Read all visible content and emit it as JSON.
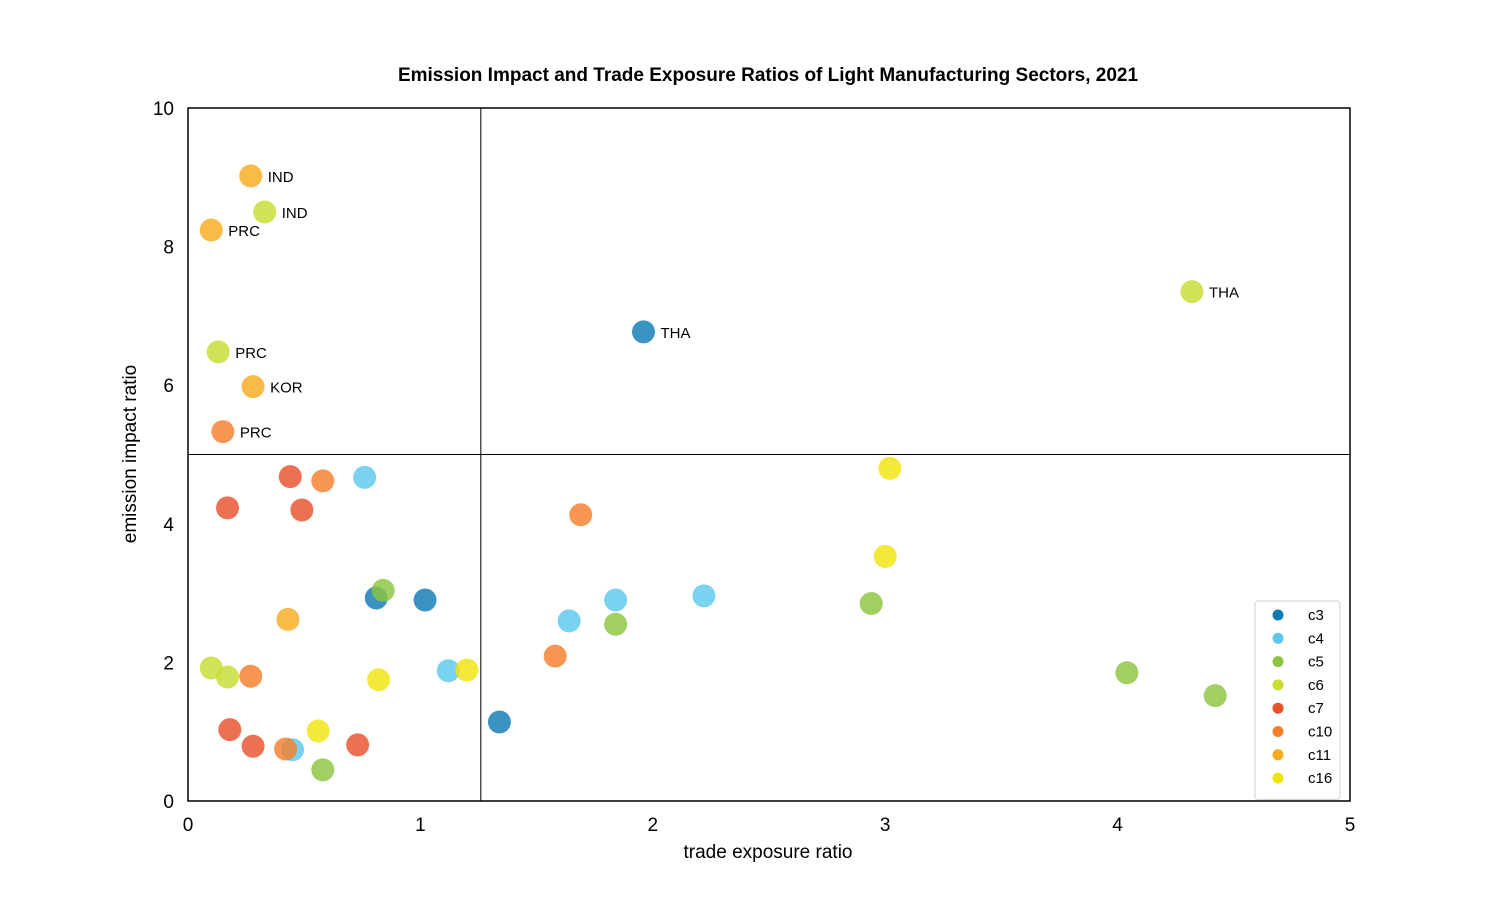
{
  "chart_data": {
    "type": "scatter",
    "title": "Emission Impact and Trade Exposure Ratios of Light Manufacturing Sectors, 2021",
    "xlabel": "trade exposure ratio",
    "ylabel": "emission impact ratio",
    "xlim": [
      0,
      5
    ],
    "ylim": [
      0,
      10
    ],
    "x_ticks": [
      0,
      1,
      2,
      3,
      4,
      5
    ],
    "y_ticks": [
      0,
      2,
      4,
      6,
      8,
      10
    ],
    "x_tick_labels": [
      "0",
      "1",
      "2",
      "3",
      "4",
      "5"
    ],
    "y_tick_labels": [
      "0",
      "2",
      "4",
      "6",
      "8",
      "10"
    ],
    "reference_lines": {
      "x": 1.26,
      "y": 5.0
    },
    "grid": false,
    "legend_position": "lower-right",
    "series": [
      {
        "name": "c3",
        "color": "#0f7bb5",
        "points": [
          {
            "x": 1.96,
            "y": 6.77,
            "label": "THA"
          },
          {
            "x": 0.81,
            "y": 2.93
          },
          {
            "x": 1.02,
            "y": 2.9
          },
          {
            "x": 1.34,
            "y": 1.14
          }
        ]
      },
      {
        "name": "c4",
        "color": "#5bc8ec",
        "points": [
          {
            "x": 0.76,
            "y": 4.67
          },
          {
            "x": 1.64,
            "y": 2.6
          },
          {
            "x": 1.84,
            "y": 2.9
          },
          {
            "x": 2.22,
            "y": 2.96
          },
          {
            "x": 1.12,
            "y": 1.88
          },
          {
            "x": 0.45,
            "y": 0.74
          }
        ]
      },
      {
        "name": "c5",
        "color": "#8cc43f",
        "points": [
          {
            "x": 0.84,
            "y": 3.04
          },
          {
            "x": 1.84,
            "y": 2.55
          },
          {
            "x": 2.94,
            "y": 2.85
          },
          {
            "x": 4.04,
            "y": 1.85
          },
          {
            "x": 4.42,
            "y": 1.52
          },
          {
            "x": 0.58,
            "y": 0.45
          }
        ]
      },
      {
        "name": "c6",
        "color": "#c8dc32",
        "points": [
          {
            "x": 0.33,
            "y": 8.5,
            "label": "IND"
          },
          {
            "x": 0.13,
            "y": 6.48,
            "label": "PRC"
          },
          {
            "x": 4.32,
            "y": 7.35,
            "label": "THA"
          },
          {
            "x": 0.1,
            "y": 1.92
          },
          {
            "x": 0.17,
            "y": 1.79
          }
        ]
      },
      {
        "name": "c7",
        "color": "#e8512b",
        "points": [
          {
            "x": 0.44,
            "y": 4.68
          },
          {
            "x": 0.17,
            "y": 4.23
          },
          {
            "x": 0.49,
            "y": 4.2
          },
          {
            "x": 0.18,
            "y": 1.03
          },
          {
            "x": 0.28,
            "y": 0.79
          },
          {
            "x": 0.73,
            "y": 0.81
          }
        ]
      },
      {
        "name": "c10",
        "color": "#f47f2c",
        "points": [
          {
            "x": 0.15,
            "y": 5.33,
            "label": "PRC"
          },
          {
            "x": 0.58,
            "y": 4.62
          },
          {
            "x": 1.69,
            "y": 4.13
          },
          {
            "x": 1.58,
            "y": 2.09
          },
          {
            "x": 0.27,
            "y": 1.8
          },
          {
            "x": 0.42,
            "y": 0.75
          }
        ]
      },
      {
        "name": "c11",
        "color": "#f9ab1e",
        "points": [
          {
            "x": 0.27,
            "y": 9.02,
            "label": "IND"
          },
          {
            "x": 0.1,
            "y": 8.24,
            "label": "PRC"
          },
          {
            "x": 0.28,
            "y": 5.98,
            "label": "KOR"
          },
          {
            "x": 0.43,
            "y": 2.62
          }
        ]
      },
      {
        "name": "c16",
        "color": "#f2e30f",
        "points": [
          {
            "x": 3.02,
            "y": 4.8
          },
          {
            "x": 3.0,
            "y": 3.53
          },
          {
            "x": 1.2,
            "y": 1.89
          },
          {
            "x": 0.82,
            "y": 1.75
          },
          {
            "x": 0.56,
            "y": 1.01
          }
        ]
      }
    ]
  }
}
